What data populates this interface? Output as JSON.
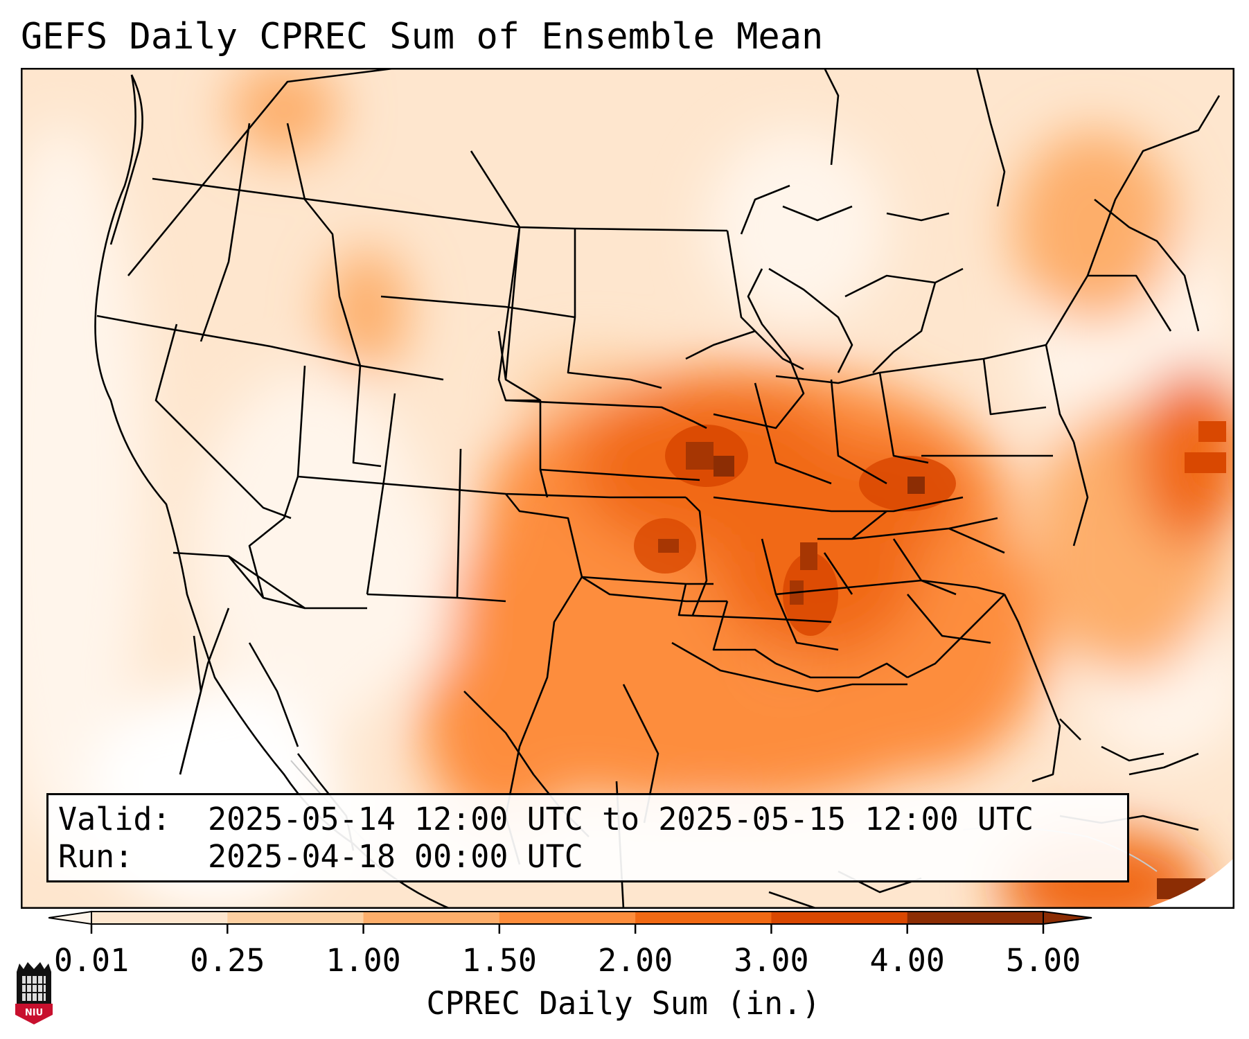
{
  "title": "GEFS Daily CPREC Sum of Ensemble Mean",
  "info": {
    "valid_label": "Valid:",
    "valid_value": "2025-05-14 12:00 UTC to 2025-05-15 12:00 UTC",
    "run_label": "Run:",
    "run_value": "2025-04-18 00:00 UTC"
  },
  "colorbar": {
    "label": "CPREC Daily Sum (in.)",
    "ticks": [
      "0.01",
      "0.25",
      "1.00",
      "1.50",
      "2.00",
      "3.00",
      "4.00",
      "5.00"
    ],
    "colors": [
      "#fff5eb",
      "#fee6ce",
      "#fdd0a2",
      "#fdae6b",
      "#fd8d3c",
      "#f16913",
      "#d94801",
      "#8c2d04"
    ]
  },
  "logo": {
    "text": "NIU",
    "color": "#c8102e"
  }
}
